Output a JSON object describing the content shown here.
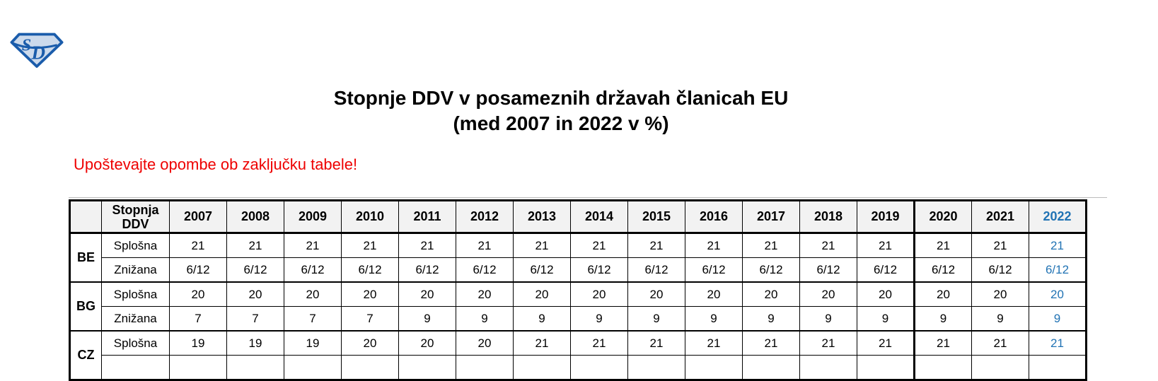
{
  "logo": {
    "letters": "SD",
    "outline_color": "#1a5cab",
    "fill_color": "#ccdaec"
  },
  "title": {
    "line1": "Stopnje DDV v posameznih državah članicah EU",
    "line2": "(med 2007 in 2022 v %)"
  },
  "note": {
    "text": "Upoštevajte opombe ob zaključku tabele!",
    "color": "#ee0000"
  },
  "table": {
    "rate_header": "Stopnja\nDDV",
    "years": [
      "2007",
      "2008",
      "2009",
      "2010",
      "2011",
      "2012",
      "2013",
      "2014",
      "2015",
      "2016",
      "2017",
      "2018",
      "2019",
      "2020",
      "2021",
      "2022"
    ],
    "highlight_year": "2022",
    "thick_divider_before_year": "2020",
    "header_bg": "#f2f2f2",
    "accent_color": "#2173b4",
    "col_width_country": 45,
    "col_width_rate": 96,
    "col_width_year": 81,
    "groups": [
      {
        "country": "BE",
        "rows": [
          {
            "label": "Splošna",
            "values": [
              "21",
              "21",
              "21",
              "21",
              "21",
              "21",
              "21",
              "21",
              "21",
              "21",
              "21",
              "21",
              "21",
              "21",
              "21",
              "21"
            ]
          },
          {
            "label": "Znižana",
            "values": [
              "6/12",
              "6/12",
              "6/12",
              "6/12",
              "6/12",
              "6/12",
              "6/12",
              "6/12",
              "6/12",
              "6/12",
              "6/12",
              "6/12",
              "6/12",
              "6/12",
              "6/12",
              "6/12"
            ]
          }
        ]
      },
      {
        "country": "BG",
        "rows": [
          {
            "label": "Splošna",
            "values": [
              "20",
              "20",
              "20",
              "20",
              "20",
              "20",
              "20",
              "20",
              "20",
              "20",
              "20",
              "20",
              "20",
              "20",
              "20",
              "20"
            ]
          },
          {
            "label": "Znižana",
            "values": [
              "7",
              "7",
              "7",
              "7",
              "9",
              "9",
              "9",
              "9",
              "9",
              "9",
              "9",
              "9",
              "9",
              "9",
              "9",
              "9"
            ]
          }
        ]
      },
      {
        "country": "CZ",
        "cutoff": true,
        "rows": [
          {
            "label": "Splošna",
            "values": [
              "19",
              "19",
              "19",
              "20",
              "20",
              "20",
              "21",
              "21",
              "21",
              "21",
              "21",
              "21",
              "21",
              "21",
              "21",
              "21"
            ]
          }
        ]
      }
    ]
  }
}
